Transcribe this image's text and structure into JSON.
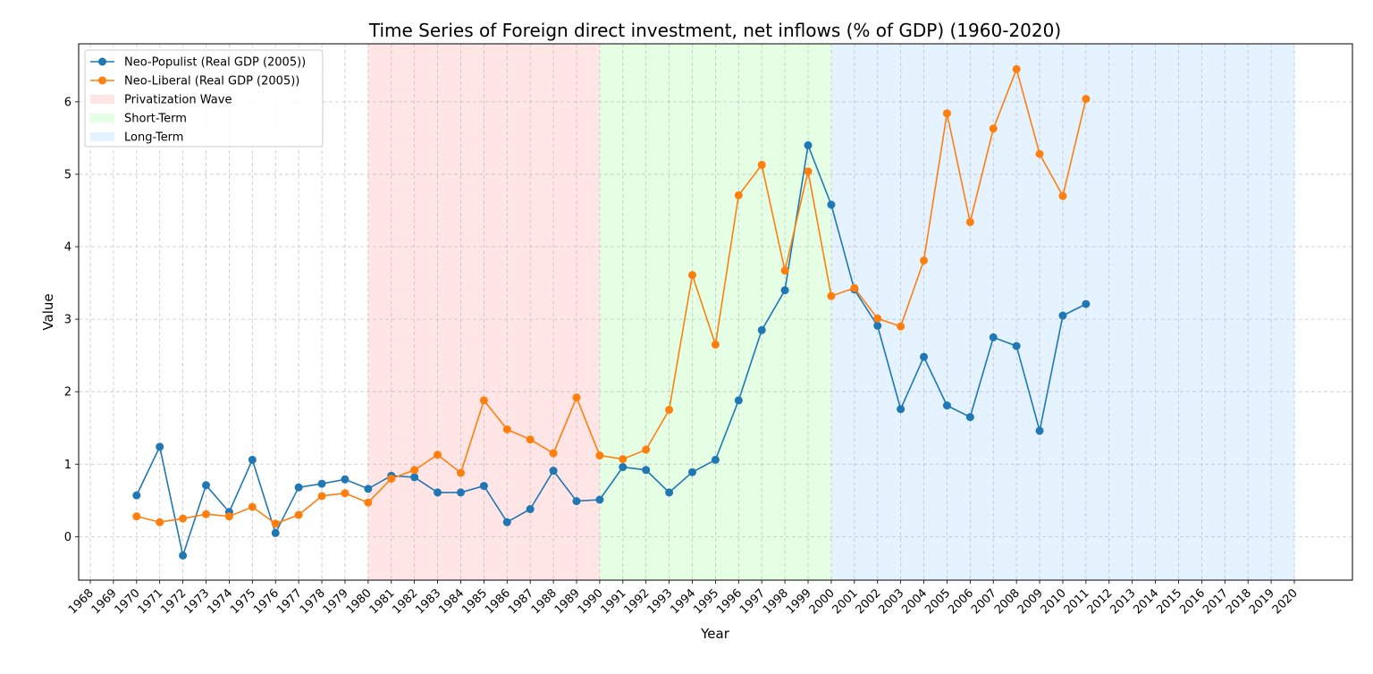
{
  "chart_data": {
    "type": "line",
    "title": "Time Series of Foreign direct investment, net inflows (% of GDP) (1960-2020)",
    "xlabel": "Year",
    "ylabel": "Value",
    "xlim": [
      1968,
      2020
    ],
    "ylim": [
      -0.6,
      6.8
    ],
    "x_ticks": [
      1968,
      1969,
      1970,
      1971,
      1972,
      1973,
      1974,
      1975,
      1976,
      1977,
      1978,
      1979,
      1980,
      1981,
      1982,
      1983,
      1984,
      1985,
      1986,
      1987,
      1988,
      1989,
      1990,
      1991,
      1992,
      1993,
      1994,
      1995,
      1996,
      1997,
      1998,
      1999,
      2000,
      2001,
      2002,
      2003,
      2004,
      2005,
      2006,
      2007,
      2008,
      2009,
      2010,
      2011,
      2012,
      2013,
      2014,
      2015,
      2016,
      2017,
      2018,
      2019,
      2020
    ],
    "y_ticks": [
      0,
      1,
      2,
      3,
      4,
      5,
      6
    ],
    "grid": true,
    "legend_position": "top-left",
    "x": [
      1970,
      1971,
      1972,
      1973,
      1974,
      1975,
      1976,
      1977,
      1978,
      1979,
      1980,
      1981,
      1982,
      1983,
      1984,
      1985,
      1986,
      1987,
      1988,
      1989,
      1990,
      1991,
      1992,
      1993,
      1994,
      1995,
      1996,
      1997,
      1998,
      1999,
      2000,
      2001,
      2002,
      2003,
      2004,
      2005,
      2006,
      2007,
      2008,
      2009,
      2010,
      2011
    ],
    "series": [
      {
        "name": "Neo-Populist (Real GDP (2005))",
        "color": "#1f77b4",
        "values": [
          0.57,
          1.24,
          -0.26,
          0.71,
          0.34,
          1.06,
          0.05,
          0.68,
          0.73,
          0.79,
          0.66,
          0.84,
          0.82,
          0.61,
          0.61,
          0.7,
          0.2,
          0.38,
          0.91,
          0.49,
          0.51,
          0.96,
          0.92,
          0.61,
          0.89,
          1.06,
          1.88,
          2.85,
          3.4,
          5.4,
          4.58,
          3.41,
          2.91,
          1.76,
          2.48,
          1.81,
          1.65,
          2.75,
          2.63,
          1.46,
          3.05,
          3.21
        ]
      },
      {
        "name": "Neo-Liberal (Real GDP (2005))",
        "color": "#ff7f0e",
        "values": [
          0.28,
          0.2,
          0.25,
          0.31,
          0.28,
          0.41,
          0.18,
          0.3,
          0.56,
          0.6,
          0.47,
          0.8,
          0.92,
          1.13,
          0.88,
          1.88,
          1.48,
          1.34,
          1.15,
          1.92,
          1.12,
          1.07,
          1.2,
          1.75,
          3.61,
          2.65,
          4.71,
          5.13,
          3.67,
          5.04,
          3.32,
          3.43,
          3.01,
          2.9,
          3.81,
          5.84,
          4.34,
          5.63,
          6.45,
          5.28,
          4.7,
          6.04
        ]
      }
    ],
    "regions": [
      {
        "name": "Privatization Wave",
        "start": 1980,
        "end": 1990,
        "color": "#ffcccc"
      },
      {
        "name": "Short-Term",
        "start": 1990,
        "end": 2000,
        "color": "#ccffcc"
      },
      {
        "name": "Long-Term",
        "start": 2000,
        "end": 2020,
        "color": "#cce5ff"
      }
    ]
  }
}
